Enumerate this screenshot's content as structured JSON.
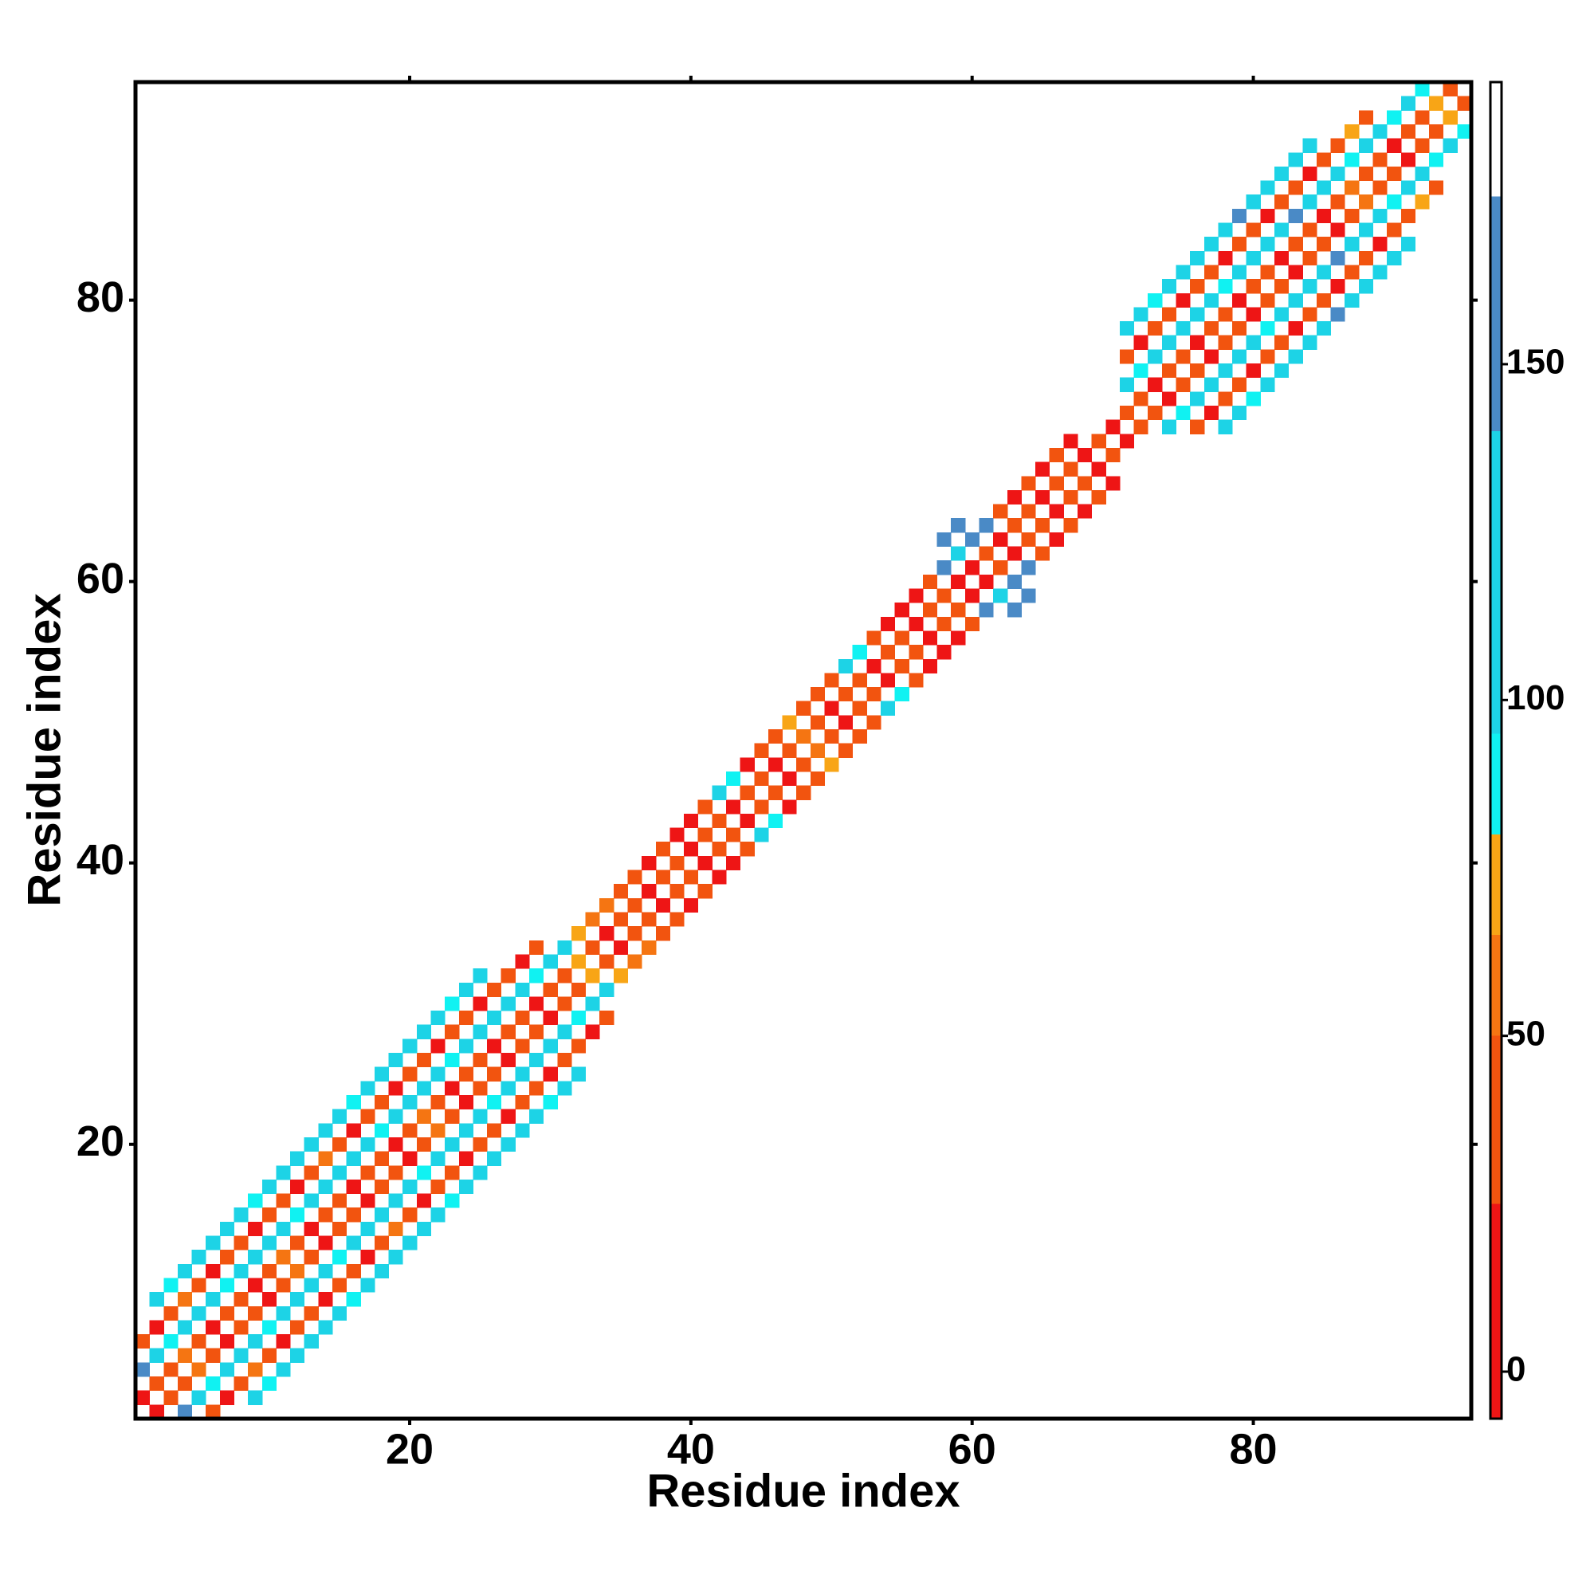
{
  "chart_data": {
    "type": "heatmap",
    "x_label": "Residue index",
    "y_label": "Residue index",
    "xlim": [
      0.5,
      95.5
    ],
    "ylim": [
      0.5,
      95.5
    ],
    "xticks": [
      20,
      40,
      60,
      80
    ],
    "yticks": [
      20,
      40,
      60,
      80
    ],
    "symmetric": true,
    "clim": [
      -7,
      192
    ],
    "cticks": [
      0,
      50,
      100,
      150
    ],
    "color_bounds": [
      -7,
      25,
      50,
      65,
      80,
      95,
      140,
      175,
      192
    ],
    "colors": [
      "#ee1515",
      "#f2540f",
      "#f57512",
      "#f8a516",
      "#10f2f2",
      "#1dd3e6",
      "#4a8ac6",
      "#ffffff"
    ],
    "cells": [
      [
        2,
        1,
        10
      ],
      [
        3,
        2,
        40
      ],
      [
        4,
        3,
        40
      ],
      [
        5,
        4,
        55
      ],
      [
        6,
        5,
        40
      ],
      [
        7,
        6,
        10
      ],
      [
        8,
        7,
        40
      ],
      [
        9,
        8,
        40
      ],
      [
        10,
        9,
        10
      ],
      [
        11,
        10,
        40
      ],
      [
        12,
        11,
        55
      ],
      [
        13,
        12,
        40
      ],
      [
        14,
        13,
        10
      ],
      [
        15,
        14,
        40
      ],
      [
        16,
        15,
        40
      ],
      [
        17,
        16,
        10
      ],
      [
        18,
        17,
        40
      ],
      [
        19,
        18,
        40
      ],
      [
        20,
        19,
        10
      ],
      [
        21,
        20,
        40
      ],
      [
        22,
        21,
        55
      ],
      [
        23,
        22,
        40
      ],
      [
        24,
        23,
        10
      ],
      [
        25,
        24,
        40
      ],
      [
        26,
        25,
        40
      ],
      [
        27,
        26,
        10
      ],
      [
        28,
        27,
        40
      ],
      [
        29,
        28,
        40
      ],
      [
        30,
        29,
        10
      ],
      [
        31,
        30,
        40
      ],
      [
        32,
        31,
        40
      ],
      [
        33,
        32,
        70
      ],
      [
        34,
        33,
        40
      ],
      [
        35,
        34,
        10
      ],
      [
        36,
        35,
        40
      ],
      [
        4,
        1,
        150
      ],
      [
        5,
        2,
        100
      ],
      [
        6,
        3,
        85
      ],
      [
        7,
        4,
        100
      ],
      [
        8,
        5,
        100
      ],
      [
        9,
        6,
        100
      ],
      [
        10,
        7,
        85
      ],
      [
        11,
        8,
        100
      ],
      [
        12,
        9,
        100
      ],
      [
        13,
        10,
        100
      ],
      [
        14,
        11,
        100
      ],
      [
        15,
        12,
        85
      ],
      [
        16,
        13,
        100
      ],
      [
        17,
        14,
        100
      ],
      [
        18,
        15,
        100
      ],
      [
        19,
        16,
        100
      ],
      [
        20,
        17,
        100
      ],
      [
        21,
        18,
        85
      ],
      [
        22,
        19,
        100
      ],
      [
        23,
        20,
        100
      ],
      [
        24,
        21,
        100
      ],
      [
        25,
        22,
        100
      ],
      [
        26,
        23,
        85
      ],
      [
        27,
        24,
        100
      ],
      [
        28,
        25,
        100
      ],
      [
        29,
        26,
        100
      ],
      [
        30,
        27,
        100
      ],
      [
        31,
        28,
        100
      ],
      [
        32,
        29,
        85
      ],
      [
        33,
        30,
        100
      ],
      [
        34,
        31,
        100
      ],
      [
        35,
        32,
        70
      ],
      [
        36,
        33,
        55
      ],
      [
        6,
        1,
        40
      ],
      [
        7,
        2,
        10
      ],
      [
        8,
        3,
        40
      ],
      [
        9,
        4,
        55
      ],
      [
        10,
        5,
        40
      ],
      [
        11,
        6,
        10
      ],
      [
        12,
        7,
        40
      ],
      [
        13,
        8,
        40
      ],
      [
        14,
        9,
        10
      ],
      [
        15,
        10,
        40
      ],
      [
        16,
        11,
        40
      ],
      [
        17,
        12,
        10
      ],
      [
        18,
        13,
        40
      ],
      [
        19,
        14,
        55
      ],
      [
        20,
        15,
        40
      ],
      [
        21,
        16,
        10
      ],
      [
        22,
        17,
        40
      ],
      [
        23,
        18,
        40
      ],
      [
        24,
        19,
        10
      ],
      [
        25,
        20,
        40
      ],
      [
        26,
        21,
        40
      ],
      [
        27,
        22,
        10
      ],
      [
        28,
        23,
        40
      ],
      [
        29,
        24,
        40
      ],
      [
        30,
        25,
        10
      ],
      [
        31,
        26,
        40
      ],
      [
        32,
        27,
        40
      ],
      [
        33,
        28,
        10
      ],
      [
        34,
        29,
        40
      ],
      [
        9,
        2,
        100
      ],
      [
        10,
        3,
        85
      ],
      [
        11,
        4,
        100
      ],
      [
        12,
        5,
        100
      ],
      [
        13,
        6,
        100
      ],
      [
        14,
        7,
        100
      ],
      [
        15,
        8,
        100
      ],
      [
        16,
        9,
        85
      ],
      [
        17,
        10,
        100
      ],
      [
        18,
        11,
        100
      ],
      [
        19,
        12,
        100
      ],
      [
        20,
        13,
        100
      ],
      [
        21,
        14,
        100
      ],
      [
        22,
        15,
        100
      ],
      [
        23,
        16,
        85
      ],
      [
        24,
        17,
        100
      ],
      [
        25,
        18,
        100
      ],
      [
        26,
        19,
        100
      ],
      [
        27,
        20,
        100
      ],
      [
        28,
        21,
        100
      ],
      [
        29,
        22,
        100
      ],
      [
        30,
        23,
        85
      ],
      [
        31,
        24,
        100
      ],
      [
        32,
        25,
        100
      ],
      [
        37,
        36,
        40
      ],
      [
        38,
        37,
        10
      ],
      [
        39,
        38,
        40
      ],
      [
        40,
        39,
        40
      ],
      [
        41,
        40,
        10
      ],
      [
        42,
        41,
        40
      ],
      [
        43,
        42,
        40
      ],
      [
        44,
        43,
        10
      ],
      [
        45,
        44,
        40
      ],
      [
        46,
        45,
        40
      ],
      [
        47,
        46,
        10
      ],
      [
        48,
        47,
        40
      ],
      [
        49,
        48,
        55
      ],
      [
        50,
        49,
        40
      ],
      [
        51,
        50,
        10
      ],
      [
        52,
        51,
        40
      ],
      [
        53,
        52,
        40
      ],
      [
        54,
        53,
        10
      ],
      [
        55,
        54,
        40
      ],
      [
        56,
        55,
        40
      ],
      [
        57,
        56,
        10
      ],
      [
        58,
        57,
        40
      ],
      [
        59,
        58,
        40
      ],
      [
        60,
        59,
        10
      ],
      [
        61,
        60,
        10
      ],
      [
        62,
        61,
        40
      ],
      [
        63,
        62,
        10
      ],
      [
        64,
        63,
        40
      ],
      [
        65,
        64,
        40
      ],
      [
        66,
        65,
        10
      ],
      [
        67,
        66,
        40
      ],
      [
        68,
        67,
        40
      ],
      [
        69,
        68,
        10
      ],
      [
        70,
        69,
        40
      ],
      [
        37,
        34,
        55
      ],
      [
        38,
        35,
        40
      ],
      [
        39,
        36,
        40
      ],
      [
        40,
        37,
        10
      ],
      [
        41,
        38,
        40
      ],
      [
        42,
        39,
        10
      ],
      [
        43,
        40,
        10
      ],
      [
        44,
        41,
        40
      ],
      [
        45,
        42,
        100
      ],
      [
        46,
        43,
        85
      ],
      [
        47,
        44,
        10
      ],
      [
        48,
        45,
        40
      ],
      [
        49,
        46,
        40
      ],
      [
        50,
        47,
        70
      ],
      [
        51,
        48,
        40
      ],
      [
        52,
        49,
        40
      ],
      [
        53,
        50,
        40
      ],
      [
        54,
        51,
        100
      ],
      [
        55,
        52,
        85
      ],
      [
        56,
        53,
        40
      ],
      [
        57,
        54,
        10
      ],
      [
        58,
        55,
        10
      ],
      [
        59,
        56,
        10
      ],
      [
        60,
        57,
        40
      ],
      [
        61,
        58,
        150
      ],
      [
        62,
        59,
        100
      ],
      [
        63,
        60,
        150
      ],
      [
        64,
        61,
        150
      ],
      [
        65,
        62,
        40
      ],
      [
        66,
        63,
        10
      ],
      [
        67,
        64,
        40
      ],
      [
        68,
        65,
        10
      ],
      [
        69,
        66,
        40
      ],
      [
        70,
        67,
        10
      ],
      [
        63,
        58,
        150
      ],
      [
        64,
        59,
        150
      ],
      [
        71,
        70,
        10
      ],
      [
        72,
        71,
        40
      ],
      [
        73,
        72,
        40
      ],
      [
        74,
        73,
        10
      ],
      [
        75,
        74,
        40
      ],
      [
        76,
        75,
        40
      ],
      [
        77,
        76,
        10
      ],
      [
        78,
        77,
        40
      ],
      [
        79,
        78,
        40
      ],
      [
        80,
        79,
        10
      ],
      [
        81,
        80,
        40
      ],
      [
        82,
        81,
        40
      ],
      [
        83,
        82,
        10
      ],
      [
        84,
        83,
        40
      ],
      [
        85,
        84,
        40
      ],
      [
        86,
        85,
        10
      ],
      [
        87,
        86,
        40
      ],
      [
        88,
        87,
        55
      ],
      [
        89,
        88,
        40
      ],
      [
        90,
        89,
        40
      ],
      [
        91,
        90,
        10
      ],
      [
        92,
        91,
        40
      ],
      [
        93,
        92,
        40
      ],
      [
        94,
        93,
        70
      ],
      [
        95,
        94,
        40
      ],
      [
        74,
        71,
        100
      ],
      [
        75,
        72,
        85
      ],
      [
        76,
        73,
        100
      ],
      [
        77,
        74,
        100
      ],
      [
        78,
        75,
        100
      ],
      [
        79,
        76,
        100
      ],
      [
        80,
        77,
        100
      ],
      [
        81,
        78,
        85
      ],
      [
        82,
        79,
        100
      ],
      [
        83,
        80,
        100
      ],
      [
        84,
        81,
        100
      ],
      [
        85,
        82,
        100
      ],
      [
        86,
        83,
        150
      ],
      [
        87,
        84,
        100
      ],
      [
        88,
        85,
        100
      ],
      [
        89,
        86,
        100
      ],
      [
        90,
        87,
        85
      ],
      [
        91,
        88,
        100
      ],
      [
        92,
        89,
        100
      ],
      [
        93,
        90,
        85
      ],
      [
        94,
        91,
        100
      ],
      [
        95,
        92,
        85
      ],
      [
        76,
        71,
        40
      ],
      [
        77,
        72,
        10
      ],
      [
        78,
        73,
        40
      ],
      [
        79,
        74,
        40
      ],
      [
        80,
        75,
        10
      ],
      [
        81,
        76,
        40
      ],
      [
        82,
        77,
        40
      ],
      [
        83,
        78,
        10
      ],
      [
        84,
        79,
        40
      ],
      [
        85,
        80,
        40
      ],
      [
        86,
        81,
        10
      ],
      [
        87,
        82,
        40
      ],
      [
        88,
        83,
        40
      ],
      [
        89,
        84,
        10
      ],
      [
        90,
        85,
        40
      ],
      [
        91,
        86,
        40
      ],
      [
        92,
        87,
        70
      ],
      [
        93,
        88,
        40
      ],
      [
        78,
        71,
        100
      ],
      [
        79,
        72,
        100
      ],
      [
        80,
        73,
        85
      ],
      [
        81,
        74,
        100
      ],
      [
        82,
        75,
        100
      ],
      [
        83,
        76,
        100
      ],
      [
        84,
        77,
        100
      ],
      [
        85,
        78,
        100
      ],
      [
        86,
        79,
        150
      ],
      [
        87,
        80,
        100
      ],
      [
        88,
        81,
        100
      ],
      [
        89,
        82,
        100
      ],
      [
        90,
        83,
        100
      ],
      [
        91,
        84,
        100
      ]
    ]
  }
}
